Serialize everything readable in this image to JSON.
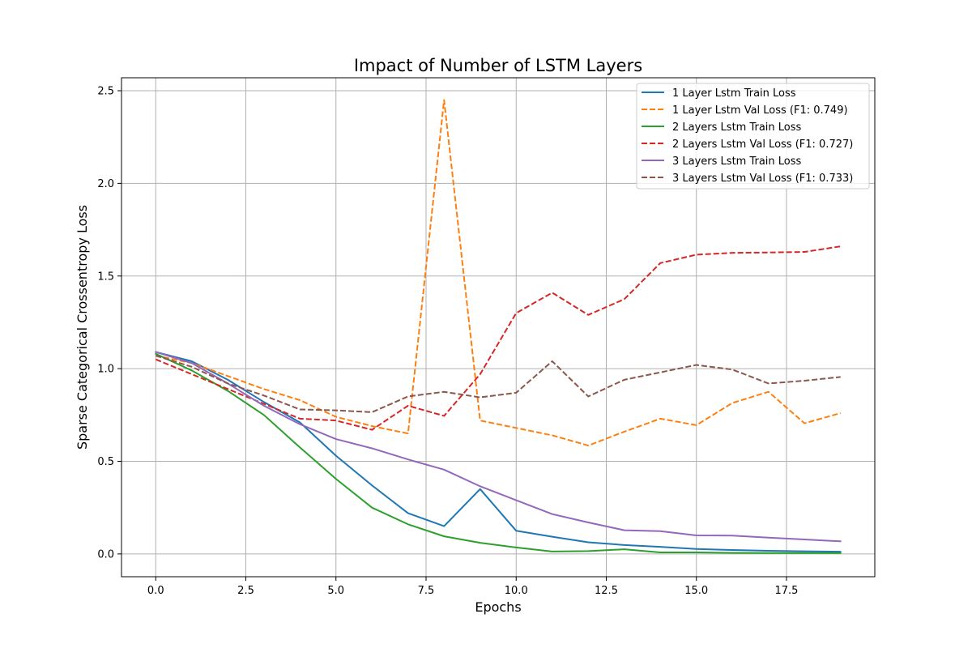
{
  "chart_data": {
    "type": "line",
    "title": "Impact of Number of LSTM Layers",
    "xlabel": "Epochs",
    "ylabel": "Sparse Categorical Crossentropy Loss",
    "xlim": [
      -0.95,
      19.95
    ],
    "ylim": [
      -0.123,
      2.57
    ],
    "xticks": [
      0.0,
      2.5,
      5.0,
      7.5,
      10.0,
      12.5,
      15.0,
      17.5
    ],
    "xtick_labels": [
      "0.0",
      "2.5",
      "5.0",
      "7.5",
      "10.0",
      "12.5",
      "15.0",
      "17.5"
    ],
    "yticks": [
      0.0,
      0.5,
      1.0,
      1.5,
      2.0,
      2.5
    ],
    "ytick_labels": [
      "0.0",
      "0.5",
      "1.0",
      "1.5",
      "2.0",
      "2.5"
    ],
    "grid": true,
    "legend_position": "top-right",
    "x": [
      0,
      1,
      2,
      3,
      4,
      5,
      6,
      7,
      8,
      9,
      10,
      11,
      12,
      13,
      14,
      15,
      16,
      17,
      18,
      19
    ],
    "series": [
      {
        "name": "1 Layer Lstm Train Loss",
        "color": "#1f77b4",
        "dash": "solid",
        "values": [
          1.09,
          1.04,
          0.94,
          0.82,
          0.71,
          0.53,
          0.37,
          0.22,
          0.15,
          0.35,
          0.125,
          0.093,
          0.063,
          0.048,
          0.038,
          0.027,
          0.021,
          0.017,
          0.014,
          0.012
        ]
      },
      {
        "name": "1 Layer Lstm Val Loss (F1: 0.749)",
        "color": "#ff7f0e",
        "dash": "dashed",
        "values": [
          1.07,
          1.03,
          0.96,
          0.89,
          0.83,
          0.74,
          0.69,
          0.65,
          2.45,
          0.72,
          0.68,
          0.64,
          0.585,
          0.66,
          0.73,
          0.695,
          0.815,
          0.875,
          0.705,
          0.76
        ]
      },
      {
        "name": "2 Layers Lstm Train Loss",
        "color": "#2ca02c",
        "dash": "solid",
        "values": [
          1.08,
          0.99,
          0.88,
          0.75,
          0.575,
          0.405,
          0.25,
          0.16,
          0.095,
          0.06,
          0.035,
          0.013,
          0.015,
          0.025,
          0.008,
          0.008,
          0.006,
          0.005,
          0.005,
          0.005
        ]
      },
      {
        "name": "2 Layers Lstm Val Loss (F1: 0.727)",
        "color": "#d62728",
        "dash": "dashed",
        "values": [
          1.05,
          0.97,
          0.89,
          0.81,
          0.73,
          0.72,
          0.67,
          0.8,
          0.745,
          0.97,
          1.3,
          1.41,
          1.29,
          1.375,
          1.57,
          1.615,
          1.625,
          1.627,
          1.63,
          1.66
        ]
      },
      {
        "name": "3 Layers Lstm Train Loss",
        "color": "#9467bd",
        "dash": "solid",
        "values": [
          1.09,
          1.03,
          0.92,
          0.8,
          0.7,
          0.62,
          0.57,
          0.51,
          0.455,
          0.365,
          0.29,
          0.215,
          0.17,
          0.128,
          0.123,
          0.1,
          0.099,
          0.088,
          0.078,
          0.068
        ]
      },
      {
        "name": "3 Layers Lstm Val Loss (F1: 0.733)",
        "color": "#8c564b",
        "dash": "dashed",
        "values": [
          1.07,
          1.01,
          0.92,
          0.855,
          0.78,
          0.775,
          0.765,
          0.85,
          0.875,
          0.845,
          0.87,
          1.04,
          0.85,
          0.94,
          0.98,
          1.02,
          0.995,
          0.92,
          0.935,
          0.955
        ]
      }
    ]
  }
}
